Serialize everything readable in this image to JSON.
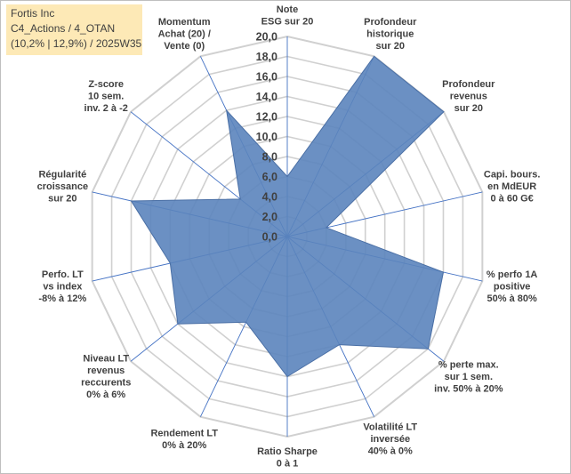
{
  "header": {
    "line1": "Fortis Inc",
    "line2": "C4_Actions / 4_OTAN",
    "line3": "(10,2% | 12,9%) / 2025W35"
  },
  "chart_data": {
    "type": "radar",
    "rmin": 0,
    "rmax": 20,
    "tick_step": 2,
    "ticks": [
      "0,0",
      "2,0",
      "4,0",
      "6,0",
      "8,0",
      "10,0",
      "12,0",
      "14,0",
      "16,0",
      "18,0",
      "20,0"
    ],
    "axes": [
      [
        "Note",
        "ESG sur 20"
      ],
      [
        "Profondeur",
        "historique",
        "sur 20"
      ],
      [
        "Profondeur",
        "revenus",
        "sur 20"
      ],
      [
        "Capi. bours.",
        "en MdEUR",
        "0 à 60 G€"
      ],
      [
        "% perfo 1A",
        "positive",
        "50% à 80%"
      ],
      [
        "% perte max.",
        "sur 1 sem.",
        "inv. 50% à 20%"
      ],
      [
        "Volatilité LT",
        "inversée",
        "40% à 0%"
      ],
      [
        "Ratio Sharpe",
        "0 à 1"
      ],
      [
        "Rendement LT",
        "0% à 20%"
      ],
      [
        "Niveau LT",
        "revenus",
        "reccurents",
        "0% à 6%"
      ],
      [
        "Perfo. LT",
        "vs index",
        "-8% à 12%"
      ],
      [
        "Régularité",
        "croissance",
        "sur 20"
      ],
      [
        "Z-score",
        "10 sem.",
        "inv. 2 à -2"
      ],
      [
        "Momentum",
        "Achat (20) /",
        "Vente (0)"
      ]
    ],
    "values": [
      6.0,
      20.0,
      20.0,
      4.0,
      16.0,
      18.0,
      12.0,
      14.0,
      9.5,
      14.0,
      12.0,
      16.0,
      6.0,
      14.0
    ],
    "grid": true,
    "fill_color": "#5b84bc",
    "line_color": "#4a6fa5",
    "grid_color": "#d0d0d0",
    "axis_line_color": "#4472c4"
  }
}
